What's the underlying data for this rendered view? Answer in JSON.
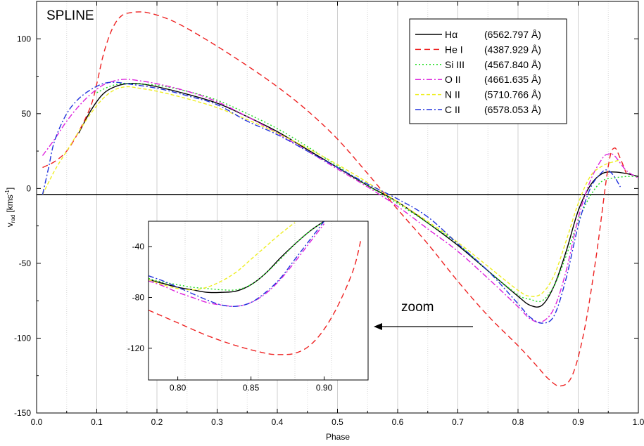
{
  "chart_data": [
    {
      "type": "line",
      "title": "SPLINE",
      "xlabel": "Phase",
      "ylabel": "v",
      "ylabel_sub": "rad",
      "ylabel_unit": "[kms",
      "ylabel_unit_sup": "-1",
      "ylabel_unit_close": "]",
      "xlim": [
        0.0,
        1.0
      ],
      "ylim": [
        -150,
        125
      ],
      "xticks": [
        "0.0",
        "0.1",
        "0.2",
        "0.3",
        "0.4",
        "0.5",
        "0.6",
        "0.7",
        "0.8",
        "0.9",
        "1.0"
      ],
      "xtick_values": [
        0.0,
        0.1,
        0.2,
        0.3,
        0.4,
        0.5,
        0.6,
        0.7,
        0.8,
        0.9,
        1.0
      ],
      "yticks": [
        "100",
        "50",
        "0",
        "-50",
        "-100",
        "-150"
      ],
      "ytick_values": [
        100,
        50,
        0,
        -50,
        -100,
        -150
      ],
      "grid_x": true,
      "grid_y": false,
      "reference_line_y": -4,
      "legend_position": "top-right",
      "series": [
        {
          "name": "Hα",
          "wavelength": "(6562.797 Å)",
          "color": "#000000",
          "dash": "solid",
          "x": [
            0.07,
            0.09,
            0.11,
            0.13,
            0.15,
            0.17,
            0.2,
            0.25,
            0.3,
            0.35,
            0.4,
            0.45,
            0.5,
            0.55,
            0.6,
            0.65,
            0.7,
            0.75,
            0.8,
            0.82,
            0.84,
            0.86,
            0.88,
            0.9,
            0.92,
            0.94,
            0.96,
            0.98,
            1.0
          ],
          "y": [
            37,
            52,
            63,
            68,
            70,
            70,
            68,
            63,
            57,
            48,
            38,
            26,
            14,
            2,
            -9,
            -23,
            -38,
            -55,
            -72,
            -78,
            -78,
            -65,
            -42,
            -15,
            2,
            10,
            11,
            10,
            8
          ]
        },
        {
          "name": "He I",
          "wavelength": "(4387.929 Å)",
          "color": "#ee2222",
          "dash": "8,5",
          "x": [
            0.01,
            0.03,
            0.05,
            0.07,
            0.09,
            0.1,
            0.11,
            0.12,
            0.13,
            0.14,
            0.15,
            0.17,
            0.19,
            0.22,
            0.25,
            0.3,
            0.35,
            0.4,
            0.45,
            0.5,
            0.55,
            0.6,
            0.65,
            0.7,
            0.75,
            0.8,
            0.83,
            0.85,
            0.87,
            0.89,
            0.91,
            0.93,
            0.95,
            0.96,
            0.97,
            0.98
          ],
          "y": [
            14,
            18,
            25,
            38,
            55,
            70,
            88,
            101,
            110,
            115,
            117,
            118,
            117,
            113,
            107,
            95,
            82,
            68,
            52,
            33,
            10,
            -14,
            -37,
            -62,
            -85,
            -105,
            -118,
            -127,
            -132,
            -125,
            -95,
            -45,
            15,
            27,
            20,
            10
          ]
        },
        {
          "name": "Si III",
          "wavelength": "(4567.840 Å)",
          "color": "#22dd22",
          "dash": "2,3",
          "x": [
            0.1,
            0.12,
            0.14,
            0.16,
            0.2,
            0.25,
            0.3,
            0.35,
            0.4,
            0.45,
            0.5,
            0.55,
            0.6,
            0.65,
            0.7,
            0.75,
            0.8,
            0.82,
            0.84,
            0.86,
            0.88,
            0.9,
            0.92,
            0.94,
            0.96,
            0.98,
            1.0
          ],
          "y": [
            64,
            68,
            70,
            70,
            69,
            65,
            59,
            50,
            40,
            28,
            15,
            2,
            -10,
            -23,
            -37,
            -55,
            -71,
            -74,
            -75,
            -65,
            -45,
            -22,
            -5,
            5,
            7,
            8,
            8
          ]
        },
        {
          "name": "O II",
          "wavelength": "(4661.635 Å)",
          "color": "#dd22dd",
          "dash": "8,3,2,3",
          "x": [
            0.01,
            0.03,
            0.05,
            0.07,
            0.09,
            0.11,
            0.13,
            0.15,
            0.17,
            0.2,
            0.25,
            0.3,
            0.35,
            0.4,
            0.45,
            0.5,
            0.55,
            0.6,
            0.65,
            0.7,
            0.75,
            0.8,
            0.82,
            0.84,
            0.86,
            0.88,
            0.9,
            0.92,
            0.94,
            0.95,
            0.96,
            0.98,
            1.0
          ],
          "y": [
            22,
            33,
            45,
            55,
            63,
            69,
            72,
            73,
            72,
            70,
            65,
            58,
            48,
            37,
            25,
            13,
            1,
            -12,
            -27,
            -42,
            -60,
            -79,
            -87,
            -89,
            -80,
            -55,
            -20,
            5,
            20,
            23,
            22,
            12,
            7
          ]
        },
        {
          "name": "N II",
          "wavelength": "(5710.766 Å)",
          "color": "#eeee22",
          "dash": "5,3",
          "x": [
            0.01,
            0.03,
            0.05,
            0.07,
            0.09,
            0.11,
            0.13,
            0.15,
            0.17,
            0.2,
            0.25,
            0.3,
            0.35,
            0.4,
            0.45,
            0.5,
            0.55,
            0.6,
            0.65,
            0.7,
            0.75,
            0.8,
            0.82,
            0.84,
            0.86,
            0.88,
            0.9,
            0.92,
            0.94,
            0.96,
            0.97
          ],
          "y": [
            -4,
            12,
            25,
            38,
            50,
            60,
            66,
            68,
            67,
            65,
            60,
            54,
            46,
            37,
            27,
            16,
            4,
            -9,
            -22,
            -36,
            -52,
            -68,
            -72,
            -70,
            -58,
            -35,
            -10,
            8,
            15,
            18,
            19
          ]
        },
        {
          "name": "C II",
          "wavelength": "(6578.053 Å)",
          "color": "#2233dd",
          "dash": "8,3,2,3",
          "x": [
            0.01,
            0.02,
            0.03,
            0.05,
            0.07,
            0.09,
            0.11,
            0.13,
            0.15,
            0.2,
            0.25,
            0.3,
            0.35,
            0.4,
            0.45,
            0.5,
            0.55,
            0.6,
            0.65,
            0.7,
            0.75,
            0.8,
            0.82,
            0.84,
            0.86,
            0.88,
            0.9,
            0.92,
            0.94,
            0.95,
            0.96,
            0.97
          ],
          "y": [
            -4,
            14,
            32,
            50,
            60,
            66,
            70,
            71,
            70,
            67,
            62,
            56,
            45,
            36,
            25,
            14,
            3,
            -7,
            -19,
            -37,
            -55,
            -77,
            -86,
            -90,
            -85,
            -60,
            -25,
            0,
            11,
            12,
            8,
            1
          ]
        }
      ]
    },
    {
      "type": "line",
      "title": "",
      "annotation": "zoom",
      "xlim": [
        0.78,
        0.93
      ],
      "ylim": [
        -145,
        -20
      ],
      "xticks": [
        "0.80",
        "0.85",
        "0.90"
      ],
      "xtick_values": [
        0.8,
        0.85,
        0.9
      ],
      "yticks": [
        "-40",
        "-80",
        "-120"
      ],
      "ytick_values": [
        -40,
        -80,
        -120
      ],
      "grid_x": true,
      "series": [
        {
          "name": "Hα",
          "color": "#000000",
          "dash": "solid",
          "x": [
            0.78,
            0.79,
            0.8,
            0.81,
            0.82,
            0.83,
            0.84,
            0.85,
            0.86,
            0.87,
            0.88,
            0.89,
            0.9
          ],
          "y": [
            -66,
            -69,
            -72,
            -74,
            -76,
            -76,
            -75,
            -70,
            -61,
            -49,
            -38,
            -28,
            -20
          ]
        },
        {
          "name": "He I",
          "color": "#ee2222",
          "dash": "8,5",
          "x": [
            0.78,
            0.8,
            0.82,
            0.84,
            0.86,
            0.87,
            0.88,
            0.89,
            0.9,
            0.91,
            0.92,
            0.925
          ],
          "y": [
            -90,
            -100,
            -110,
            -118,
            -124,
            -125,
            -124,
            -118,
            -105,
            -85,
            -58,
            -35
          ]
        },
        {
          "name": "Si III",
          "color": "#22dd22",
          "dash": "2,3",
          "x": [
            0.78,
            0.79,
            0.8,
            0.81,
            0.82,
            0.83,
            0.84,
            0.85,
            0.86,
            0.87,
            0.88,
            0.89,
            0.9
          ],
          "y": [
            -65,
            -68,
            -70,
            -72,
            -73,
            -74,
            -74,
            -70,
            -61,
            -50,
            -38,
            -28,
            -20
          ]
        },
        {
          "name": "O II",
          "color": "#dd22dd",
          "dash": "8,3,2,3",
          "x": [
            0.78,
            0.79,
            0.8,
            0.81,
            0.82,
            0.83,
            0.84,
            0.85,
            0.86,
            0.87,
            0.88,
            0.89,
            0.9
          ],
          "y": [
            -67,
            -71,
            -76,
            -80,
            -84,
            -86,
            -87,
            -84,
            -77,
            -66,
            -52,
            -37,
            -22
          ]
        },
        {
          "name": "N II",
          "color": "#eeee22",
          "dash": "5,3",
          "x": [
            0.78,
            0.79,
            0.8,
            0.81,
            0.82,
            0.83,
            0.84,
            0.85,
            0.86,
            0.87,
            0.88
          ],
          "y": [
            -66,
            -70,
            -73,
            -74,
            -72,
            -67,
            -60,
            -50,
            -40,
            -30,
            -21
          ]
        },
        {
          "name": "C II",
          "color": "#2233dd",
          "dash": "8,3,2,3",
          "x": [
            0.78,
            0.79,
            0.8,
            0.81,
            0.82,
            0.83,
            0.84,
            0.85,
            0.86,
            0.87,
            0.88,
            0.89,
            0.9
          ],
          "y": [
            -63,
            -67,
            -72,
            -77,
            -82,
            -86,
            -87,
            -84,
            -76,
            -65,
            -50,
            -35,
            -20
          ]
        }
      ]
    }
  ]
}
